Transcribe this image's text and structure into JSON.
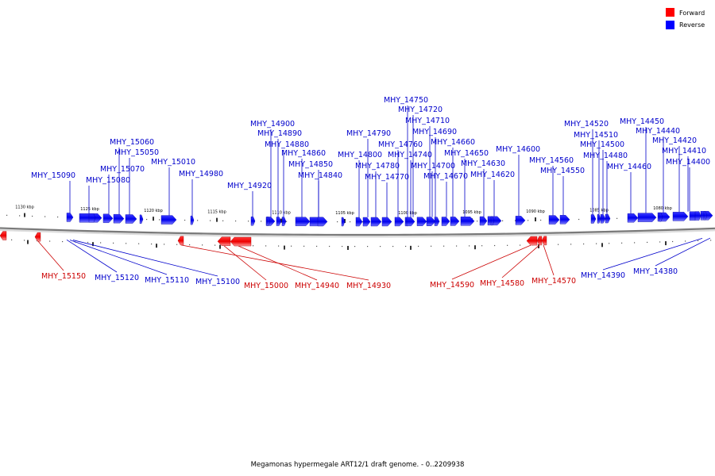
{
  "legend": {
    "forward": {
      "label": "Forward",
      "color": "#ff0000"
    },
    "reverse": {
      "label": "Reverse",
      "color": "#0000ff"
    }
  },
  "caption": "Megamonas hypermegale ART12/1 draft genome. - 0..2209938",
  "scale": {
    "unit": "kbp",
    "ticks": [
      {
        "kbp": 1130,
        "label": "1130 kbp"
      },
      {
        "kbp": 1125,
        "label": "1125 kbp"
      },
      {
        "kbp": 1120,
        "label": "1120 kbp"
      },
      {
        "kbp": 1115,
        "label": "1115 kbp"
      },
      {
        "kbp": 1110,
        "label": "1110 kbp"
      },
      {
        "kbp": 1105,
        "label": "1105 kbp"
      },
      {
        "kbp": 1100,
        "label": "1100 kbp"
      },
      {
        "kbp": 1095,
        "label": "1095 kbp"
      },
      {
        "kbp": 1090,
        "label": "1090 kbp"
      },
      {
        "kbp": 1085,
        "label": "1085 kbp"
      },
      {
        "kbp": 1080,
        "label": "1080 kbp"
      }
    ]
  },
  "genes": {
    "reverse": [
      "MHY_15090",
      "MHY_15080",
      "MHY_15070",
      "MHY_15060",
      "MHY_15050",
      "MHY_15010",
      "MHY_14980",
      "MHY_14920",
      "MHY_14900",
      "MHY_14890",
      "MHY_14880",
      "MHY_14860",
      "MHY_14850",
      "MHY_14840",
      "MHY_14800",
      "MHY_14790",
      "MHY_14780",
      "MHY_14770",
      "MHY_14760",
      "MHY_14750",
      "MHY_14740",
      "MHY_14720",
      "MHY_14710",
      "MHY_14700",
      "MHY_14690",
      "MHY_14670",
      "MHY_14660",
      "MHY_14650",
      "MHY_14630",
      "MHY_14620",
      "MHY_14600",
      "MHY_14560",
      "MHY_14550",
      "MHY_14520",
      "MHY_14510",
      "MHY_14500",
      "MHY_14480",
      "MHY_14460",
      "MHY_14450",
      "MHY_14440",
      "MHY_14420",
      "MHY_14410",
      "MHY_14400",
      "MHY_15120",
      "MHY_15110",
      "MHY_15100",
      "MHY_14390",
      "MHY_14380"
    ],
    "forward": [
      "MHY_15150",
      "MHY_15000",
      "MHY_14940",
      "MHY_14930",
      "MHY_14590",
      "MHY_14580",
      "MHY_14570"
    ]
  }
}
